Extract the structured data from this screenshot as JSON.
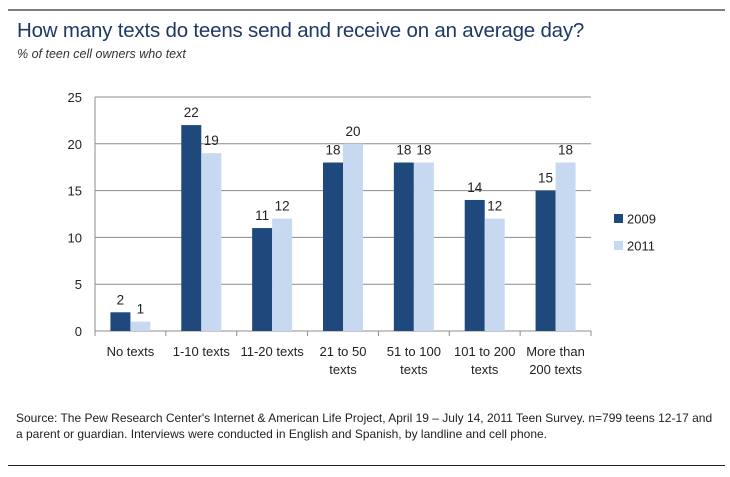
{
  "chart_data": {
    "type": "bar",
    "title": "How many texts do teens send and receive on an average day?",
    "subtitle": "% of teen cell owners who text",
    "xlabel": "",
    "ylabel": "",
    "categories": [
      [
        "No texts"
      ],
      [
        "1-10 texts"
      ],
      [
        "11-20 texts"
      ],
      [
        "21 to 50",
        "texts"
      ],
      [
        "51 to 100",
        "texts"
      ],
      [
        "101 to 200",
        "texts"
      ],
      [
        "More than",
        "200 texts"
      ]
    ],
    "series": [
      {
        "name": "2009",
        "color": "#1f497d",
        "values": [
          2,
          22,
          11,
          18,
          18,
          14,
          15
        ]
      },
      {
        "name": "2011",
        "color": "#c6d9f1",
        "values": [
          1,
          19,
          12,
          20,
          18,
          12,
          18
        ]
      }
    ],
    "ylim": [
      0,
      25
    ],
    "yticks": [
      0,
      5,
      10,
      15,
      20,
      25
    ],
    "grid": true,
    "legend": "right",
    "data_labels": true
  },
  "source": "Source: The Pew Research Center's Internet & American Life Project, April 19 – July 14, 2011 Teen Survey. n=799 teens 12-17 and a parent or guardian. Interviews were conducted in English and Spanish, by landline and cell phone."
}
